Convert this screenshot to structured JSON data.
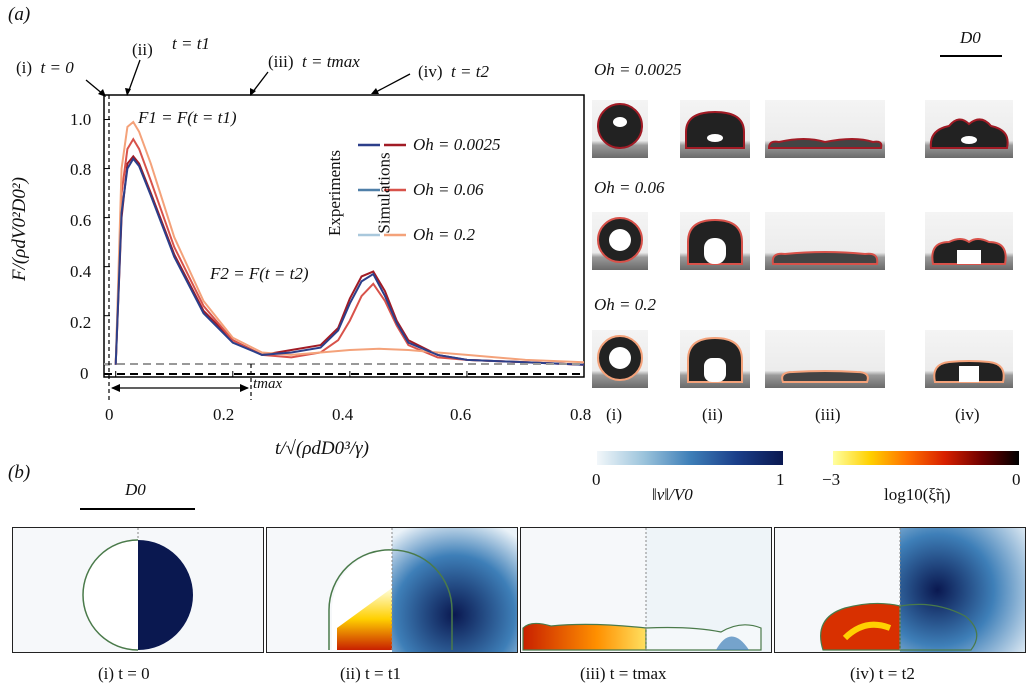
{
  "panel_a": {
    "label": "(a)",
    "stage_labels": [
      {
        "roman": "(i)",
        "time": "t = 0"
      },
      {
        "roman": "(ii)",
        "time": "t = t1"
      },
      {
        "roman": "(iii)",
        "time": "t = tmax"
      },
      {
        "roman": "(iv)",
        "time": "t = t2"
      }
    ],
    "annotations": {
      "f1": "F1 = F(t = t1)",
      "f2": "F2 = F(t = t2)",
      "tmax": "tmax"
    },
    "legend": {
      "group_experiments": "Experiments",
      "group_simulations": "Simulations",
      "oh_labels": [
        "Oh = 0.0025",
        "Oh = 0.06",
        "Oh = 0.2"
      ]
    },
    "ylabel": "F/(ρdV0²D0²)",
    "xlabel": "t/√(ρdD0³/γ)",
    "x_ticks": [
      "0",
      "0.2",
      "0.4",
      "0.6",
      "0.8"
    ],
    "y_ticks": [
      "0",
      "0.2",
      "0.4",
      "0.6",
      "0.8",
      "1.0"
    ],
    "scale_label": "D0",
    "snapshot_rows": [
      "Oh = 0.0025",
      "Oh = 0.06",
      "Oh = 0.2"
    ],
    "snapshot_cols": [
      "(i)",
      "(ii)",
      "(iii)",
      "(iv)"
    ]
  },
  "panel_b": {
    "label": "(b)",
    "scale_label": "D0",
    "colorbar_velocity": {
      "min": "0",
      "max": "1",
      "label": "‖v‖/V0"
    },
    "colorbar_dissipation": {
      "min": "−3",
      "max": "0",
      "label": "log10(ξ̃η)"
    },
    "captions": [
      "(i)  t = 0",
      "(ii)  t = t1",
      "(iii)    t = tmax",
      "(iv)   t = t2"
    ]
  },
  "colors": {
    "oh_0_0025": "#a11b25",
    "oh_0_06": "#d8524a",
    "oh_0_2": "#f4a27a",
    "exp_1": "#2c3f8a",
    "exp_2": "#4f7fa8",
    "exp_3": "#a9c8dc",
    "dashed_grey": "#999999"
  },
  "chart_data": {
    "type": "line",
    "xlabel": "t/√(ρdD0³/γ)",
    "ylabel": "F/(ρdV0²D0²)",
    "xlim": [
      -0.02,
      0.8
    ],
    "ylim": [
      -0.05,
      1.1
    ],
    "series": [
      {
        "name": "Oh = 0.0025",
        "x": [
          0,
          0.01,
          0.02,
          0.03,
          0.04,
          0.06,
          0.1,
          0.15,
          0.2,
          0.25,
          0.3,
          0.35,
          0.38,
          0.4,
          0.42,
          0.44,
          0.46,
          0.48,
          0.5,
          0.55,
          0.6,
          0.7,
          0.8
        ],
        "y": [
          0,
          0.6,
          0.82,
          0.85,
          0.82,
          0.7,
          0.45,
          0.22,
          0.1,
          0.04,
          0.06,
          0.08,
          0.15,
          0.27,
          0.36,
          0.38,
          0.3,
          0.18,
          0.1,
          0.04,
          0.02,
          0.01,
          0
        ]
      },
      {
        "name": "Oh = 0.06",
        "x": [
          0,
          0.01,
          0.02,
          0.03,
          0.04,
          0.06,
          0.1,
          0.15,
          0.2,
          0.25,
          0.3,
          0.35,
          0.38,
          0.4,
          0.42,
          0.44,
          0.46,
          0.48,
          0.5,
          0.55,
          0.6,
          0.7,
          0.8
        ],
        "y": [
          0,
          0.7,
          0.88,
          0.92,
          0.88,
          0.75,
          0.48,
          0.24,
          0.1,
          0.04,
          0.03,
          0.05,
          0.1,
          0.18,
          0.28,
          0.33,
          0.26,
          0.16,
          0.08,
          0.03,
          0.02,
          0.01,
          0
        ]
      },
      {
        "name": "Oh = 0.2",
        "x": [
          0,
          0.01,
          0.02,
          0.03,
          0.04,
          0.06,
          0.1,
          0.15,
          0.2,
          0.25,
          0.3,
          0.35,
          0.4,
          0.45,
          0.5,
          0.55,
          0.6,
          0.7,
          0.8
        ],
        "y": [
          0,
          0.8,
          0.97,
          0.99,
          0.95,
          0.82,
          0.52,
          0.26,
          0.11,
          0.05,
          0.04,
          0.05,
          0.06,
          0.065,
          0.06,
          0.05,
          0.04,
          0.02,
          0.01
        ]
      },
      {
        "name": "Experiments",
        "x": [
          0,
          0.01,
          0.02,
          0.03,
          0.04,
          0.06,
          0.1,
          0.15,
          0.2,
          0.25,
          0.3,
          0.35,
          0.38,
          0.4,
          0.42,
          0.44,
          0.46,
          0.48,
          0.5,
          0.55,
          0.6,
          0.7,
          0.8
        ],
        "y": [
          0,
          0.62,
          0.8,
          0.84,
          0.81,
          0.69,
          0.44,
          0.21,
          0.09,
          0.04,
          0.05,
          0.07,
          0.14,
          0.25,
          0.34,
          0.37,
          0.28,
          0.17,
          0.09,
          0.04,
          0.02,
          0.01,
          0
        ]
      }
    ],
    "reference_lines": [
      {
        "y": 0.04,
        "style": "dashed"
      },
      {
        "y": 0,
        "style": "dashed"
      }
    ]
  }
}
